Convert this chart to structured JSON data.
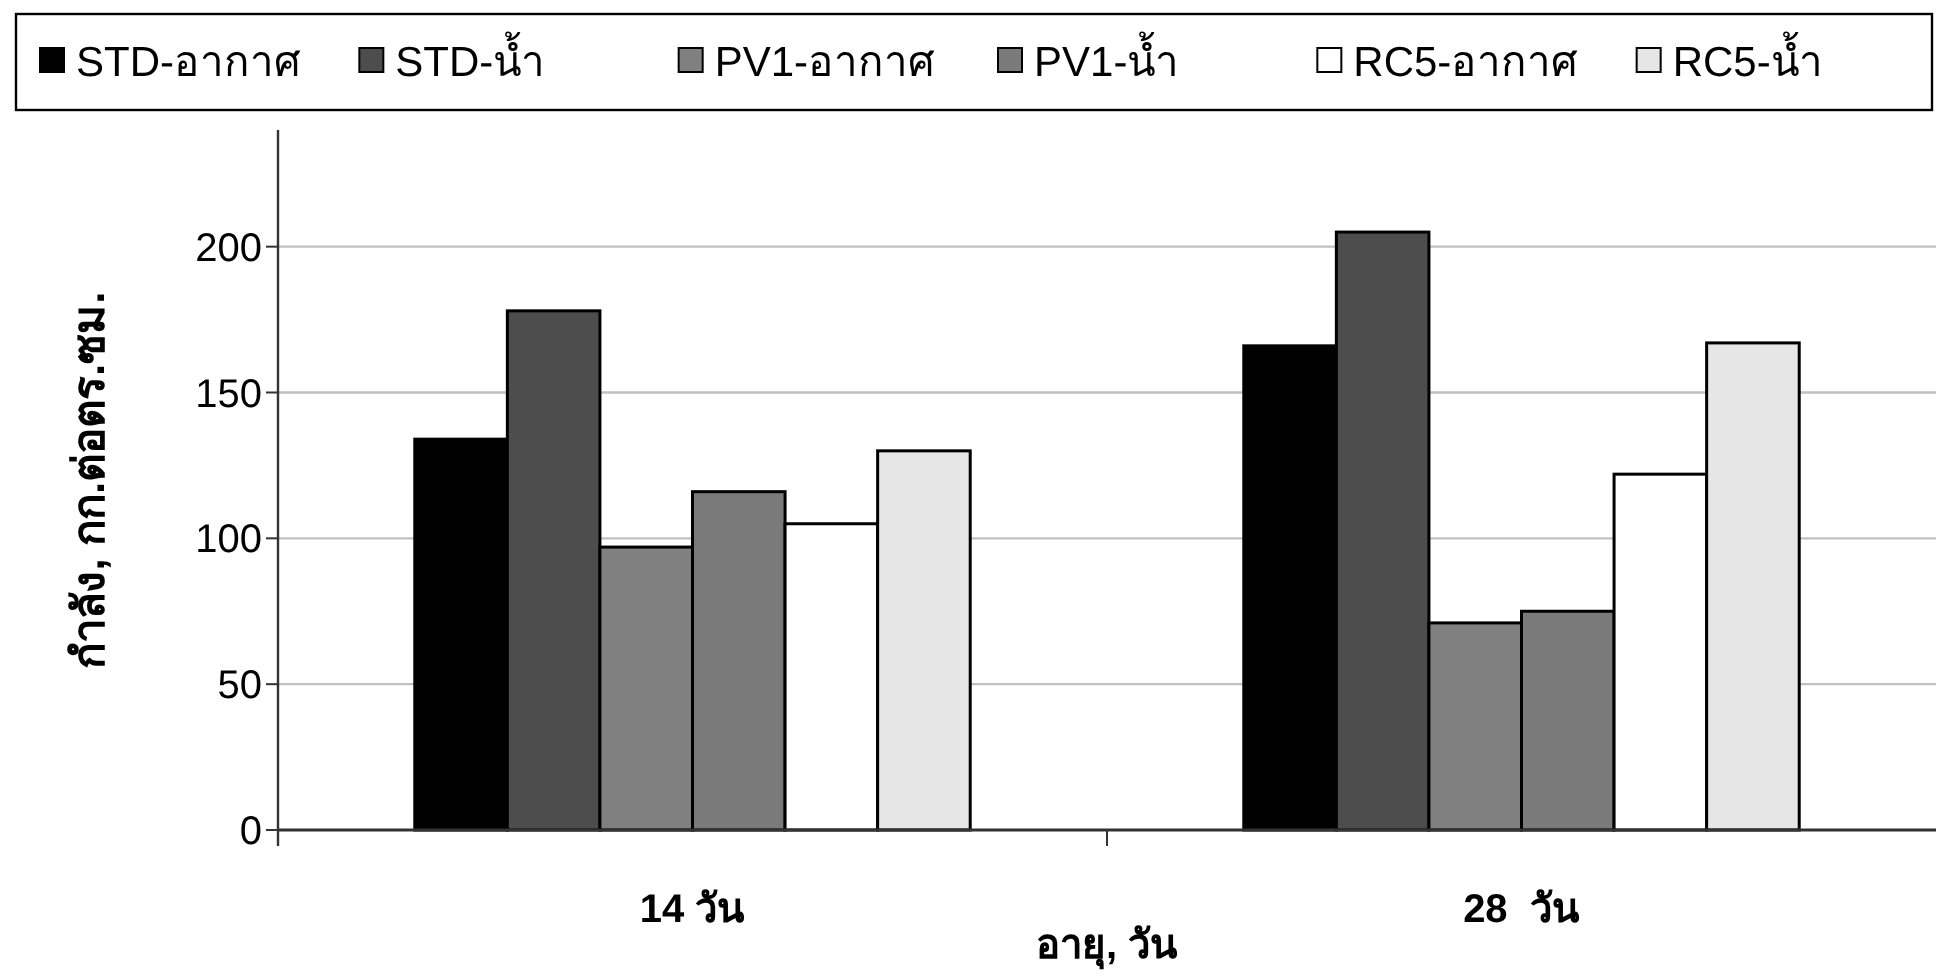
{
  "chart_data": {
    "type": "bar",
    "categories": [
      "14 วัน",
      "28  วัน"
    ],
    "xlabel": "อายุ, วัน",
    "ylabel": "กำลัง, กก.ต่อตร.ซม.",
    "ylim": [
      0,
      240
    ],
    "yticks": [
      0,
      50,
      100,
      150,
      200
    ],
    "grid": "y",
    "legend": "top",
    "series": [
      {
        "name": "STD-อากาศ",
        "color": "#000000",
        "values": [
          134,
          166
        ]
      },
      {
        "name": "STD-น้ำ",
        "color": "#4d4d4d",
        "values": [
          178,
          205
        ]
      },
      {
        "name": "PV1-อากาศ",
        "color": "#808080",
        "values": [
          97,
          71
        ]
      },
      {
        "name": "PV1-น้ำ",
        "color": "#7a7a7a",
        "values": [
          116,
          75
        ]
      },
      {
        "name": "RC5-อากาศ",
        "color": "#ffffff",
        "values": [
          105,
          122
        ]
      },
      {
        "name": "RC5-น้ำ",
        "color": "#e6e6e6",
        "values": [
          130,
          167
        ]
      }
    ]
  }
}
